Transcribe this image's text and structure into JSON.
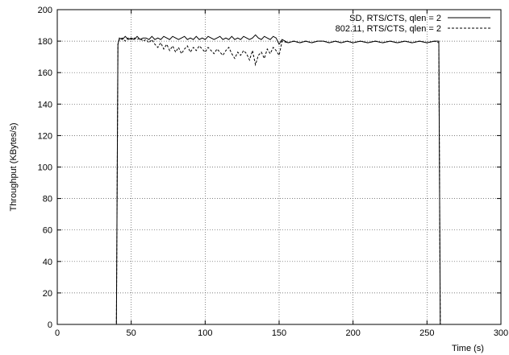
{
  "chart_data": {
    "type": "line",
    "title": "",
    "xlabel": "Time (s)",
    "ylabel": "Throughput (KBytes/s)",
    "xlim": [
      0,
      300
    ],
    "ylim": [
      0,
      200
    ],
    "xticks": [
      0,
      50,
      100,
      150,
      200,
      250,
      300
    ],
    "yticks": [
      0,
      20,
      40,
      60,
      80,
      100,
      120,
      140,
      160,
      180,
      200
    ],
    "grid": true,
    "legend_position": "top-right",
    "series": [
      {
        "name": "SD, RTS/CTS, qlen = 2",
        "style": "solid",
        "color": "#000000",
        "points": [
          [
            0,
            0
          ],
          [
            40,
            0
          ],
          [
            41,
            178
          ],
          [
            42,
            182
          ],
          [
            44,
            181
          ],
          [
            46,
            183
          ],
          [
            48,
            181
          ],
          [
            50,
            182
          ],
          [
            52,
            181
          ],
          [
            54,
            183
          ],
          [
            56,
            181
          ],
          [
            58,
            182
          ],
          [
            60,
            182
          ],
          [
            62,
            181
          ],
          [
            64,
            183
          ],
          [
            66,
            181
          ],
          [
            68,
            182
          ],
          [
            70,
            181
          ],
          [
            72,
            183
          ],
          [
            74,
            182
          ],
          [
            76,
            181
          ],
          [
            78,
            183
          ],
          [
            80,
            182
          ],
          [
            82,
            181
          ],
          [
            84,
            182
          ],
          [
            86,
            183
          ],
          [
            88,
            181
          ],
          [
            90,
            182
          ],
          [
            92,
            181
          ],
          [
            94,
            183
          ],
          [
            96,
            181
          ],
          [
            98,
            182
          ],
          [
            100,
            181
          ],
          [
            102,
            183
          ],
          [
            104,
            182
          ],
          [
            106,
            181
          ],
          [
            108,
            182
          ],
          [
            110,
            183
          ],
          [
            112,
            181
          ],
          [
            114,
            182
          ],
          [
            116,
            181
          ],
          [
            118,
            183
          ],
          [
            120,
            181
          ],
          [
            122,
            182
          ],
          [
            124,
            181
          ],
          [
            126,
            183
          ],
          [
            128,
            182
          ],
          [
            130,
            181
          ],
          [
            132,
            182
          ],
          [
            134,
            184
          ],
          [
            136,
            182
          ],
          [
            138,
            181
          ],
          [
            140,
            183
          ],
          [
            142,
            182
          ],
          [
            144,
            181
          ],
          [
            146,
            183
          ],
          [
            148,
            182
          ],
          [
            150,
            178
          ],
          [
            152,
            181
          ],
          [
            156,
            179
          ],
          [
            160,
            180
          ],
          [
            164,
            179
          ],
          [
            168,
            180
          ],
          [
            172,
            179
          ],
          [
            176,
            180
          ],
          [
            180,
            180
          ],
          [
            184,
            179
          ],
          [
            188,
            180
          ],
          [
            192,
            179
          ],
          [
            196,
            180
          ],
          [
            200,
            179
          ],
          [
            205,
            180
          ],
          [
            210,
            179
          ],
          [
            215,
            180
          ],
          [
            220,
            179
          ],
          [
            225,
            180
          ],
          [
            230,
            179
          ],
          [
            235,
            180
          ],
          [
            240,
            179
          ],
          [
            245,
            180
          ],
          [
            250,
            179
          ],
          [
            255,
            180
          ],
          [
            258,
            180
          ],
          [
            259,
            0
          ],
          [
            300,
            0
          ]
        ]
      },
      {
        "name": "802.11, RTS/CTS, qlen = 2",
        "style": "dashed",
        "color": "#000000",
        "points": [
          [
            0,
            0
          ],
          [
            40,
            0
          ],
          [
            41,
            178
          ],
          [
            42,
            181
          ],
          [
            44,
            182
          ],
          [
            46,
            180
          ],
          [
            48,
            182
          ],
          [
            50,
            181
          ],
          [
            52,
            182
          ],
          [
            54,
            181
          ],
          [
            56,
            182
          ],
          [
            58,
            180
          ],
          [
            60,
            181
          ],
          [
            62,
            179
          ],
          [
            64,
            181
          ],
          [
            66,
            178
          ],
          [
            68,
            176
          ],
          [
            70,
            179
          ],
          [
            72,
            175
          ],
          [
            74,
            178
          ],
          [
            76,
            174
          ],
          [
            78,
            177
          ],
          [
            80,
            173
          ],
          [
            82,
            176
          ],
          [
            84,
            172
          ],
          [
            86,
            175
          ],
          [
            88,
            177
          ],
          [
            90,
            173
          ],
          [
            92,
            176
          ],
          [
            94,
            174
          ],
          [
            96,
            177
          ],
          [
            98,
            175
          ],
          [
            100,
            173
          ],
          [
            102,
            176
          ],
          [
            104,
            174
          ],
          [
            106,
            172
          ],
          [
            108,
            175
          ],
          [
            110,
            173
          ],
          [
            112,
            171
          ],
          [
            114,
            174
          ],
          [
            116,
            176
          ],
          [
            118,
            172
          ],
          [
            120,
            169
          ],
          [
            122,
            173
          ],
          [
            124,
            171
          ],
          [
            126,
            174
          ],
          [
            128,
            172
          ],
          [
            130,
            168
          ],
          [
            132,
            174
          ],
          [
            134,
            165
          ],
          [
            136,
            171
          ],
          [
            138,
            173
          ],
          [
            140,
            169
          ],
          [
            142,
            175
          ],
          [
            144,
            172
          ],
          [
            146,
            176
          ],
          [
            148,
            174
          ],
          [
            150,
            171
          ],
          [
            152,
            180
          ],
          [
            156,
            179
          ],
          [
            160,
            180
          ],
          [
            164,
            179
          ],
          [
            168,
            180
          ],
          [
            172,
            179
          ],
          [
            176,
            180
          ],
          [
            180,
            180
          ],
          [
            184,
            179
          ],
          [
            188,
            180
          ],
          [
            192,
            179
          ],
          [
            196,
            180
          ],
          [
            200,
            179
          ],
          [
            205,
            180
          ],
          [
            210,
            179
          ],
          [
            215,
            180
          ],
          [
            220,
            179
          ],
          [
            225,
            180
          ],
          [
            230,
            179
          ],
          [
            235,
            180
          ],
          [
            240,
            179
          ],
          [
            245,
            180
          ],
          [
            250,
            179
          ],
          [
            255,
            180
          ],
          [
            258,
            179
          ],
          [
            259,
            0
          ],
          [
            300,
            0
          ]
        ]
      }
    ]
  }
}
